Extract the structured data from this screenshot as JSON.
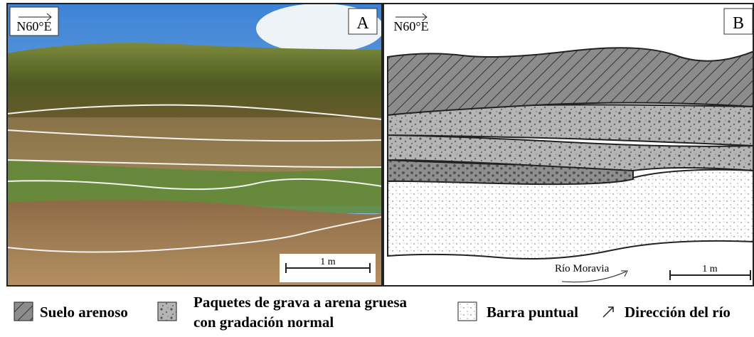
{
  "panels": [
    {
      "label": "A",
      "orientation": "N60°E",
      "scale": "1 m"
    },
    {
      "label": "B",
      "orientation": "N60°E",
      "scale": "1 m",
      "river": "Río Moravia"
    }
  ],
  "legend": {
    "items": [
      {
        "lines": [
          "Suelo arenoso"
        ]
      },
      {
        "lines": [
          "Paquetes de grava a arena gruesa",
          "con gradación normal"
        ]
      },
      {
        "lines": [
          "Barra puntual"
        ]
      },
      {
        "lines": [
          "Dirección del río"
        ]
      }
    ]
  }
}
